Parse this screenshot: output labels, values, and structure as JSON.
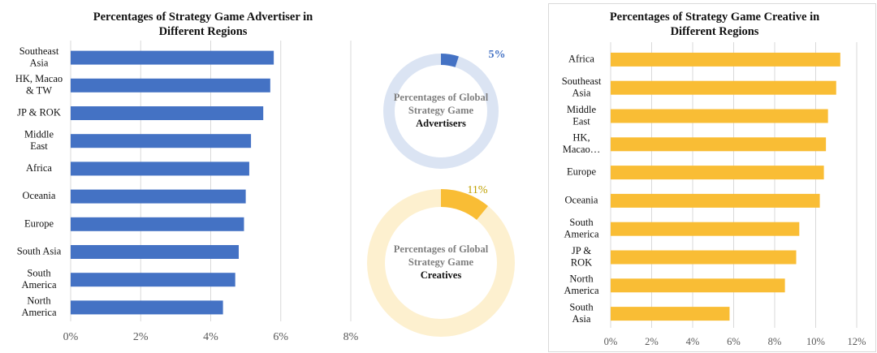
{
  "chart_data": [
    {
      "type": "bar",
      "orientation": "horizontal",
      "title": "Percentages of Strategy Game Advertiser in\nDifferent Regions",
      "categories": [
        "Southeast\nAsia",
        "HK, Macao\n& TW",
        "JP & ROK",
        "Middle\nEast",
        "Africa",
        "Oceania",
        "Europe",
        "South Asia",
        "South\nAmerica",
        "North\nAmerica"
      ],
      "values": [
        5.8,
        5.7,
        5.5,
        5.15,
        5.1,
        5.0,
        4.95,
        4.8,
        4.7,
        4.35
      ],
      "xlim": [
        0,
        8
      ],
      "xticks": [
        "0%",
        "2%",
        "4%",
        "6%",
        "8%"
      ],
      "color": "#4472c4",
      "grid": true,
      "xlabel": "",
      "ylabel": ""
    },
    {
      "type": "pie",
      "variant": "donut",
      "label_lines": [
        "Percentages of Global",
        "Strategy Game",
        "Advertisers"
      ],
      "slice_label": "5%",
      "value": 5,
      "color": "#4472c4",
      "track_color": "#dbe4f3"
    },
    {
      "type": "pie",
      "variant": "donut",
      "label_lines": [
        "Percentages of Global",
        "Strategy Game",
        "Creatives"
      ],
      "slice_label": "11%",
      "value": 11,
      "color": "#f9bd35",
      "track_color": "#fdf0cf"
    },
    {
      "type": "bar",
      "orientation": "horizontal",
      "title": "Percentages of Strategy Game Creative in\nDifferent Regions",
      "categories": [
        "Africa",
        "Southeast\nAsia",
        "Middle\nEast",
        "HK,\nMacao…",
        "Europe",
        "Oceania",
        "South\nAmerica",
        "JP &\nROK",
        "North\nAmerica",
        "South\nAsia"
      ],
      "values": [
        11.2,
        11.0,
        10.6,
        10.5,
        10.4,
        10.2,
        9.2,
        9.05,
        8.5,
        5.8
      ],
      "xlim": [
        0,
        12
      ],
      "xticks": [
        "0%",
        "2%",
        "4%",
        "6%",
        "8%",
        "10%",
        "12%"
      ],
      "color": "#f9bd35",
      "grid": true,
      "xlabel": "",
      "ylabel": ""
    }
  ]
}
